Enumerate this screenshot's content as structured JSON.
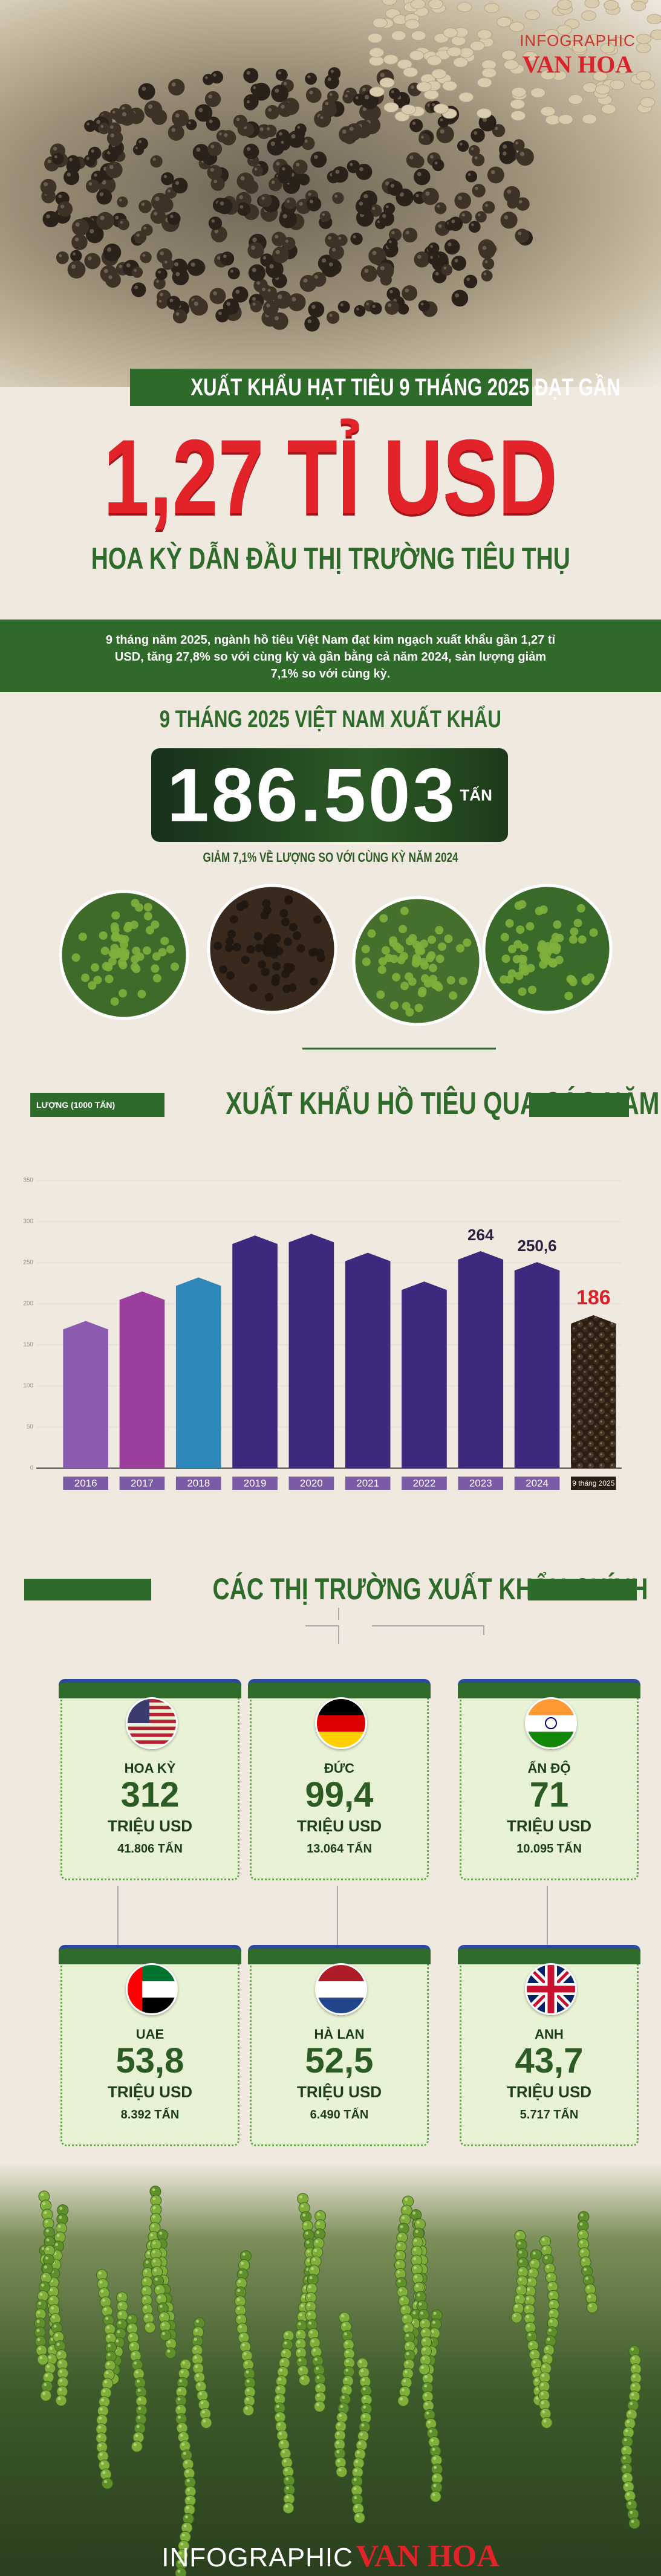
{
  "header": {
    "brand_small": "INFOGRAPHIC",
    "brand_large": "VAN HOA"
  },
  "title": {
    "kicker": "XUẤT KHẨU HẠT TIÊU 9 THÁNG 2025 ĐẠT GẦN",
    "headline": "1,27 TỈ USD",
    "subtitle": "HOA KỲ DẪN ĐẦU THỊ TRƯỜNG TIÊU THỤ"
  },
  "intro": "9 tháng năm 2025, ngành hồ tiêu Việt Nam đạt kim ngạch xuất khẩu gần 1,27 tỉ USD, tăng 27,8% so với cùng kỳ và gần bằng cả năm 2024, sản lượng giảm 7,1% so với cùng kỳ.",
  "volume": {
    "heading": "9 THÁNG 2025 VIỆT NAM XUẤT KHẨU",
    "number": "186.503",
    "unit": "TẤN",
    "note": "GIẢM 7,1% VỀ LƯỢNG SO VỚI CÙNG KỲ NĂM 2024"
  },
  "chart_data": {
    "type": "bar",
    "title": "XUẤT KHẨU HỒ TIÊU QUA CÁC NĂM",
    "y_label": "LƯỢNG (1000 TẤN)",
    "categories": [
      "2016",
      "2017",
      "2018",
      "2019",
      "2020",
      "2021",
      "2022",
      "2023",
      "2024",
      "9 tháng 2025"
    ],
    "values": [
      179,
      215,
      232,
      283,
      285,
      262,
      227,
      264,
      250.6,
      186
    ],
    "value_labels": [
      null,
      null,
      null,
      null,
      null,
      null,
      null,
      "264",
      "250,6",
      "186"
    ],
    "colors": [
      "#8a5cb0",
      "#9a3f9c",
      "#2f86b8",
      "#3d2a7e",
      "#3d2a7e",
      "#3d2a7e",
      "#3d2a7e",
      "#3d2a7e",
      "#3d2a7e",
      "#2a1d12"
    ],
    "ylim": [
      0,
      350
    ],
    "yticks": [
      0,
      50,
      100,
      150,
      200,
      250,
      300,
      350
    ],
    "grid": true
  },
  "markets": {
    "heading": "CÁC THỊ TRƯỜNG XUẤT KHẨU CHÍNH",
    "items": [
      {
        "country": "HOA KỲ",
        "value": "312",
        "unit": "TRIỆU USD",
        "volume": "41.806 TẤN"
      },
      {
        "country": "ĐỨC",
        "value": "99,4",
        "unit": "TRIỆU USD",
        "volume": "13.064 TẤN"
      },
      {
        "country": "ẤN ĐỘ",
        "value": "71",
        "unit": "TRIỆU USD",
        "volume": "10.095 TẤN"
      },
      {
        "country": "UAE",
        "value": "53,8",
        "unit": "TRIỆU USD",
        "volume": "8.392 TẤN"
      },
      {
        "country": "HÀ LAN",
        "value": "52,5",
        "unit": "TRIỆU USD",
        "volume": "6.490 TẤN"
      },
      {
        "country": "ANH",
        "value": "43,7",
        "unit": "TRIỆU USD",
        "volume": "5.717 TẤN"
      }
    ]
  },
  "footer": {
    "brand_small": "INFOGRAPHIC",
    "brand_large": "VAN HOA"
  }
}
